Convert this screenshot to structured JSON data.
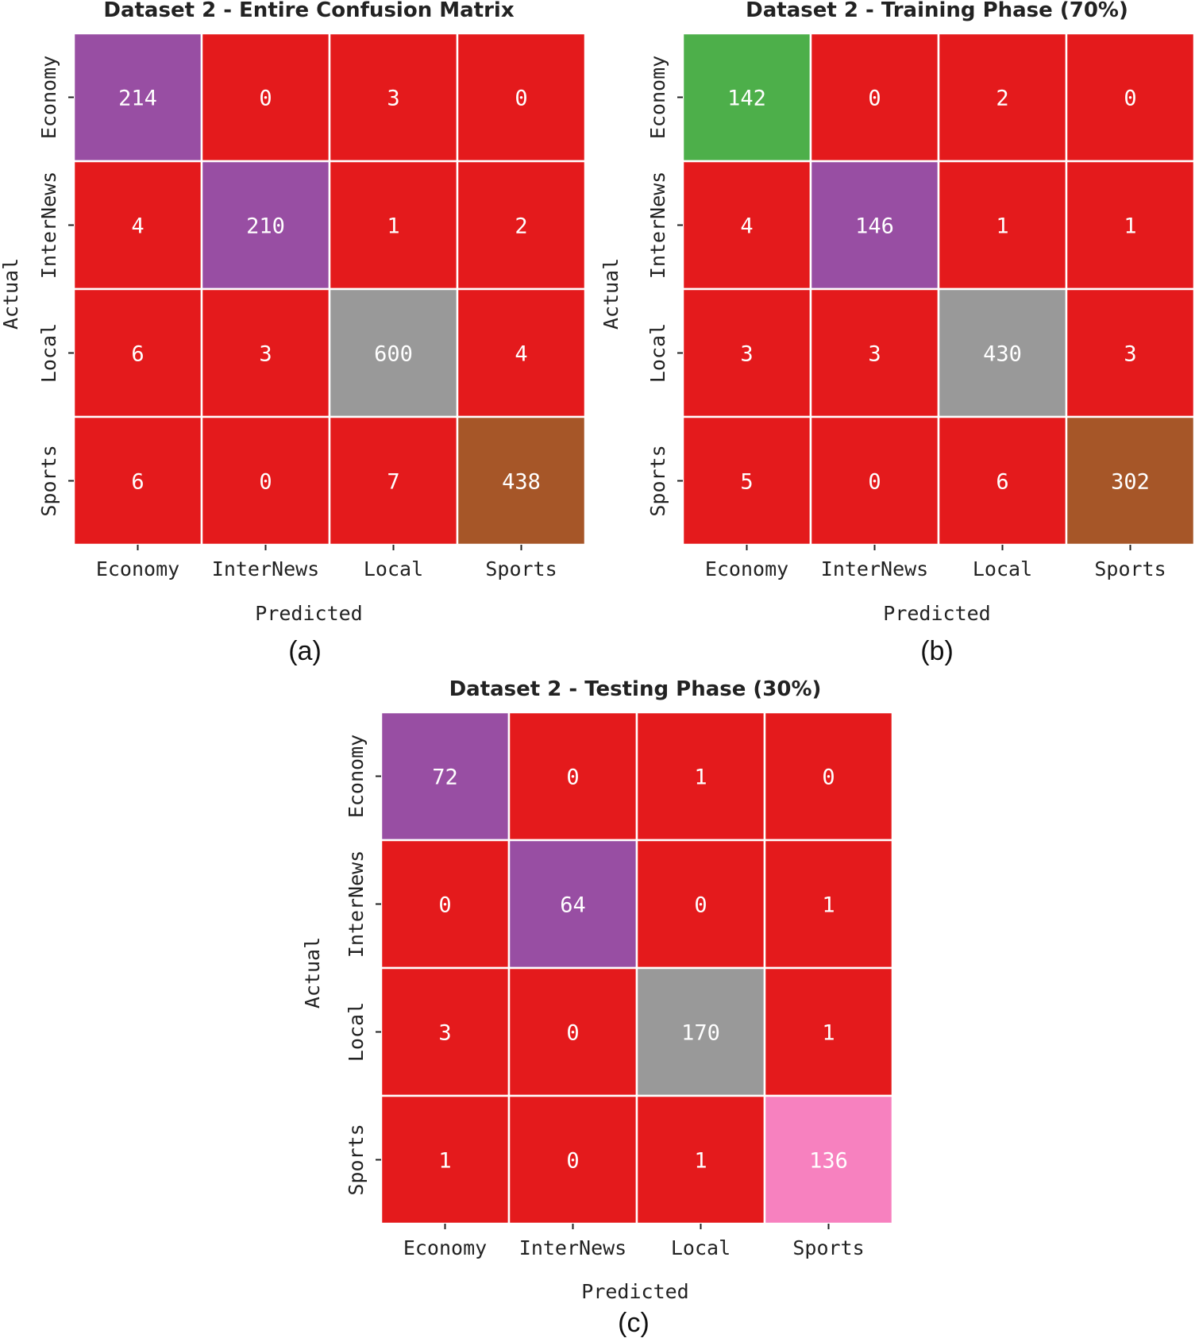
{
  "chart_data": [
    {
      "id": "a",
      "type": "heatmap",
      "title": "Dataset 2 - Entire Confusion Matrix",
      "xlabel": "Predicted",
      "ylabel": "Actual",
      "x_categories": [
        "Economy",
        "InterNews",
        "Local",
        "Sports"
      ],
      "y_categories": [
        "Economy",
        "InterNews",
        "Local",
        "Sports"
      ],
      "values": [
        [
          214,
          0,
          3,
          0
        ],
        [
          4,
          210,
          1,
          2
        ],
        [
          6,
          3,
          600,
          4
        ],
        [
          6,
          0,
          7,
          438
        ]
      ],
      "diagonal_colors": [
        "#984ea3",
        "#984ea3",
        "#999999",
        "#a65628"
      ],
      "off_diagonal_color": "#e41a1c",
      "caption": "(a)"
    },
    {
      "id": "b",
      "type": "heatmap",
      "title": "Dataset 2 - Training Phase (70%)",
      "xlabel": "Predicted",
      "ylabel": "Actual",
      "x_categories": [
        "Economy",
        "InterNews",
        "Local",
        "Sports"
      ],
      "y_categories": [
        "Economy",
        "InterNews",
        "Local",
        "Sports"
      ],
      "values": [
        [
          142,
          0,
          2,
          0
        ],
        [
          4,
          146,
          1,
          1
        ],
        [
          3,
          3,
          430,
          3
        ],
        [
          5,
          0,
          6,
          302
        ]
      ],
      "diagonal_colors": [
        "#4daf4a",
        "#984ea3",
        "#999999",
        "#a65628"
      ],
      "off_diagonal_color": "#e41a1c",
      "caption": "(b)"
    },
    {
      "id": "c",
      "type": "heatmap",
      "title": "Dataset 2 - Testing Phase (30%)",
      "xlabel": "Predicted",
      "ylabel": "Actual",
      "x_categories": [
        "Economy",
        "InterNews",
        "Local",
        "Sports"
      ],
      "y_categories": [
        "Economy",
        "InterNews",
        "Local",
        "Sports"
      ],
      "values": [
        [
          72,
          0,
          1,
          0
        ],
        [
          0,
          64,
          0,
          1
        ],
        [
          3,
          0,
          170,
          1
        ],
        [
          1,
          0,
          1,
          136
        ]
      ],
      "diagonal_colors": [
        "#984ea3",
        "#984ea3",
        "#999999",
        "#f781bf"
      ],
      "off_diagonal_color": "#e41a1c",
      "caption": "(c)"
    }
  ]
}
